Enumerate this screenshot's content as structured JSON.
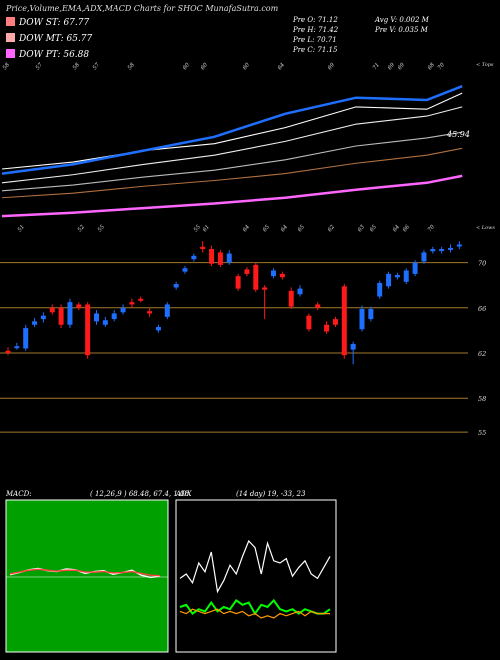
{
  "header": {
    "title": "Price,Volume,EMA,ADX,MACD Charts for SHOC MunafaSutra.com"
  },
  "legend": [
    {
      "label": "DOW ST: 67.77",
      "color": "#ff7f7f"
    },
    {
      "label": "DOW MT: 65.77",
      "color": "#ffaaaa"
    },
    {
      "label": "DOW PT: 56.88",
      "color": "#ff66ff"
    }
  ],
  "ohlc": {
    "open": "Pre  O: 71.12",
    "high": "Pre  H: 71.42",
    "low": "Pre  L: 70.71",
    "close": "Pre  C: 71.15",
    "avg_volume": "Avg V: 0.002  M",
    "prev_volume": "Pre  V: 0.035 M"
  },
  "panel_labels": {
    "top": "< Tops",
    "lows": "< Lows",
    "ema_value": "45.94"
  },
  "chart_data": [
    {
      "type": "candlestick",
      "name": "price",
      "y_ticks": [
        70,
        66,
        62,
        58,
        55
      ],
      "top_tick_labels": [
        "58",
        "57",
        "58",
        "57",
        "58",
        "60",
        "60",
        "60",
        "64",
        "69",
        "71",
        "69",
        "69",
        "68",
        "70"
      ],
      "low_tick_labels": [
        "51",
        "52",
        "55",
        "55",
        "61",
        "64",
        "65",
        "64",
        "65",
        "62",
        "63",
        "65",
        "64",
        "66",
        "70"
      ],
      "candles": [
        {
          "o": 62.0,
          "c": 62.2,
          "h": 62.5,
          "l": 61.8,
          "color": "red"
        },
        {
          "o": 62.6,
          "c": 62.6,
          "h": 62.9,
          "l": 62.3,
          "color": "blue"
        },
        {
          "o": 62.4,
          "c": 64.2,
          "h": 64.5,
          "l": 62.2,
          "color": "blue"
        },
        {
          "o": 64.5,
          "c": 64.8,
          "h": 65.1,
          "l": 64.3,
          "color": "blue"
        },
        {
          "o": 65.0,
          "c": 65.3,
          "h": 65.6,
          "l": 64.7,
          "color": "blue"
        },
        {
          "o": 66.0,
          "c": 65.6,
          "h": 66.3,
          "l": 65.4,
          "color": "red"
        },
        {
          "o": 66.0,
          "c": 64.5,
          "h": 66.3,
          "l": 64.2,
          "color": "red"
        },
        {
          "o": 64.5,
          "c": 66.5,
          "h": 66.8,
          "l": 64.2,
          "color": "blue"
        },
        {
          "o": 66.3,
          "c": 66.0,
          "h": 66.5,
          "l": 65.8,
          "color": "red"
        },
        {
          "o": 66.3,
          "c": 61.8,
          "h": 66.5,
          "l": 61.5,
          "color": "red"
        },
        {
          "o": 64.8,
          "c": 65.5,
          "h": 65.8,
          "l": 64.5,
          "color": "blue"
        },
        {
          "o": 64.5,
          "c": 64.9,
          "h": 65.2,
          "l": 64.3,
          "color": "blue"
        },
        {
          "o": 65.0,
          "c": 65.5,
          "h": 65.8,
          "l": 64.8,
          "color": "blue"
        },
        {
          "o": 65.6,
          "c": 66.0,
          "h": 66.3,
          "l": 65.4,
          "color": "blue"
        },
        {
          "o": 66.5,
          "c": 66.3,
          "h": 66.8,
          "l": 66.0,
          "color": "red"
        },
        {
          "o": 66.8,
          "c": 66.7,
          "h": 67.0,
          "l": 66.5,
          "color": "red"
        },
        {
          "o": 65.5,
          "c": 65.7,
          "h": 66.0,
          "l": 65.2,
          "color": "red"
        },
        {
          "o": 64.0,
          "c": 64.3,
          "h": 64.5,
          "l": 63.8,
          "color": "blue"
        },
        {
          "o": 65.2,
          "c": 66.3,
          "h": 66.5,
          "l": 65.0,
          "color": "blue"
        },
        {
          "o": 67.8,
          "c": 68.1,
          "h": 68.3,
          "l": 67.6,
          "color": "blue"
        },
        {
          "o": 69.2,
          "c": 69.5,
          "h": 69.7,
          "l": 69.0,
          "color": "blue"
        },
        {
          "o": 70.3,
          "c": 70.6,
          "h": 70.8,
          "l": 70.1,
          "color": "blue"
        },
        {
          "o": 71.2,
          "c": 71.4,
          "h": 71.9,
          "l": 70.9,
          "color": "red"
        },
        {
          "o": 71.2,
          "c": 69.9,
          "h": 71.5,
          "l": 69.7,
          "color": "red"
        },
        {
          "o": 70.9,
          "c": 69.8,
          "h": 71.1,
          "l": 69.6,
          "color": "red"
        },
        {
          "o": 70.0,
          "c": 70.8,
          "h": 71.1,
          "l": 69.8,
          "color": "blue"
        },
        {
          "o": 68.8,
          "c": 67.7,
          "h": 69.0,
          "l": 67.5,
          "color": "red"
        },
        {
          "o": 69.4,
          "c": 69.0,
          "h": 69.6,
          "l": 68.8,
          "color": "red"
        },
        {
          "o": 69.8,
          "c": 67.6,
          "h": 70.0,
          "l": 67.4,
          "color": "red"
        },
        {
          "o": 67.6,
          "c": 67.8,
          "h": 68.0,
          "l": 65.0,
          "color": "red"
        },
        {
          "o": 68.8,
          "c": 69.3,
          "h": 69.5,
          "l": 68.6,
          "color": "blue"
        },
        {
          "o": 69.0,
          "c": 68.7,
          "h": 69.2,
          "l": 68.5,
          "color": "red"
        },
        {
          "o": 67.5,
          "c": 66.1,
          "h": 67.8,
          "l": 65.9,
          "color": "red"
        },
        {
          "o": 67.2,
          "c": 67.7,
          "h": 68.0,
          "l": 67.0,
          "color": "blue"
        },
        {
          "o": 65.3,
          "c": 64.1,
          "h": 65.5,
          "l": 63.9,
          "color": "red"
        },
        {
          "o": 66.0,
          "c": 66.3,
          "h": 66.5,
          "l": 65.8,
          "color": "red"
        },
        {
          "o": 64.5,
          "c": 63.9,
          "h": 64.8,
          "l": 63.7,
          "color": "red"
        },
        {
          "o": 64.5,
          "c": 65.0,
          "h": 65.2,
          "l": 64.3,
          "color": "red"
        },
        {
          "o": 67.9,
          "c": 61.8,
          "h": 68.1,
          "l": 61.5,
          "color": "red"
        },
        {
          "o": 62.3,
          "c": 62.8,
          "h": 63.0,
          "l": 61.0,
          "color": "blue"
        },
        {
          "o": 64.1,
          "c": 65.9,
          "h": 66.2,
          "l": 63.9,
          "color": "blue"
        },
        {
          "o": 65.0,
          "c": 65.9,
          "h": 66.1,
          "l": 64.8,
          "color": "blue"
        },
        {
          "o": 67.0,
          "c": 68.2,
          "h": 68.4,
          "l": 66.8,
          "color": "blue"
        },
        {
          "o": 67.9,
          "c": 69.0,
          "h": 69.2,
          "l": 67.7,
          "color": "blue"
        },
        {
          "o": 68.7,
          "c": 68.9,
          "h": 69.1,
          "l": 68.5,
          "color": "blue"
        },
        {
          "o": 68.3,
          "c": 69.3,
          "h": 69.5,
          "l": 68.1,
          "color": "blue"
        },
        {
          "o": 69.0,
          "c": 70.0,
          "h": 70.2,
          "l": 68.8,
          "color": "blue"
        },
        {
          "o": 70.1,
          "c": 70.9,
          "h": 71.1,
          "l": 69.9,
          "color": "blue"
        },
        {
          "o": 71.0,
          "c": 71.2,
          "h": 71.4,
          "l": 70.8,
          "color": "blue"
        },
        {
          "o": 71.1,
          "c": 71.2,
          "h": 71.4,
          "l": 70.8,
          "color": "blue"
        },
        {
          "o": 71.2,
          "c": 71.3,
          "h": 71.6,
          "l": 70.9,
          "color": "blue"
        },
        {
          "o": 71.5,
          "c": 71.6,
          "h": 71.9,
          "l": 71.2,
          "color": "blue"
        }
      ]
    },
    {
      "type": "line",
      "name": "ema",
      "x": [
        0,
        8,
        16,
        24,
        32,
        40,
        48,
        52
      ],
      "series": [
        {
          "values": [
            49.0,
            49.6,
            50.6,
            51.2,
            52.6,
            54.4,
            54.2,
            55.6
          ],
          "color": "#ffffff"
        },
        {
          "values": [
            48.6,
            49.4,
            50.6,
            51.8,
            53.8,
            55.2,
            55.0,
            56.2
          ],
          "color": "#1f6fff"
        },
        {
          "values": [
            47.8,
            48.5,
            49.4,
            50.2,
            51.4,
            52.9,
            53.6,
            54.4
          ],
          "color": "#eeeeee"
        },
        {
          "values": [
            47.1,
            47.6,
            48.3,
            48.9,
            49.8,
            51.0,
            51.7,
            52.2
          ],
          "color": "#bbbbbb"
        },
        {
          "values": [
            46.5,
            46.9,
            47.5,
            48.0,
            48.6,
            49.5,
            50.2,
            50.8
          ],
          "color": "#b07040"
        },
        {
          "values": [
            44.9,
            45.2,
            45.6,
            46.0,
            46.5,
            47.2,
            47.8,
            48.4
          ],
          "color": "#ff66ff"
        }
      ]
    },
    {
      "type": "line",
      "name": "macd",
      "title": "MACD:",
      "params": "( 12,26,9 ) 68.48, 67.4,  1.08",
      "series": [
        {
          "values": [
            0.5,
            1.0,
            1.6,
            1.9,
            1.4,
            1.2,
            1.8,
            1.6,
            0.8,
            1.2,
            1.4,
            0.6,
            1.0,
            1.5,
            0.4,
            -0.1,
            0.2
          ],
          "color": "#ffffff"
        },
        {
          "values": [
            0.7,
            1.1,
            1.5,
            1.7,
            1.5,
            1.3,
            1.5,
            1.5,
            1.1,
            1.1,
            1.2,
            0.9,
            1.0,
            1.2,
            0.8,
            0.4,
            0.3
          ],
          "color": "#ff4040"
        }
      ]
    },
    {
      "type": "line",
      "name": "adx",
      "title": "ADX",
      "params": "(14  day) 19,  -33,  23",
      "series": [
        {
          "name": "",
          "values": [
            28,
            30,
            26,
            35,
            31,
            40,
            22,
            27,
            34,
            30,
            38,
            45,
            42,
            30,
            44,
            36,
            35,
            37,
            29,
            33,
            36,
            30,
            28,
            33,
            38
          ],
          "color": "#ffffff"
        },
        {
          "name": "",
          "values": [
            15,
            16,
            12,
            14,
            13,
            17,
            13,
            15,
            14,
            18,
            16,
            17,
            12,
            16,
            15,
            18,
            14,
            13,
            14,
            12,
            14,
            13,
            12,
            12,
            14
          ],
          "color": "#00ff00"
        },
        {
          "name": "",
          "values": [
            13,
            12,
            14,
            13,
            12,
            13,
            14,
            12,
            13,
            12,
            13,
            11,
            12,
            10,
            11,
            10,
            12,
            11,
            12,
            13,
            11,
            13,
            12,
            12,
            12
          ],
          "color": "#ff9900"
        }
      ]
    }
  ]
}
